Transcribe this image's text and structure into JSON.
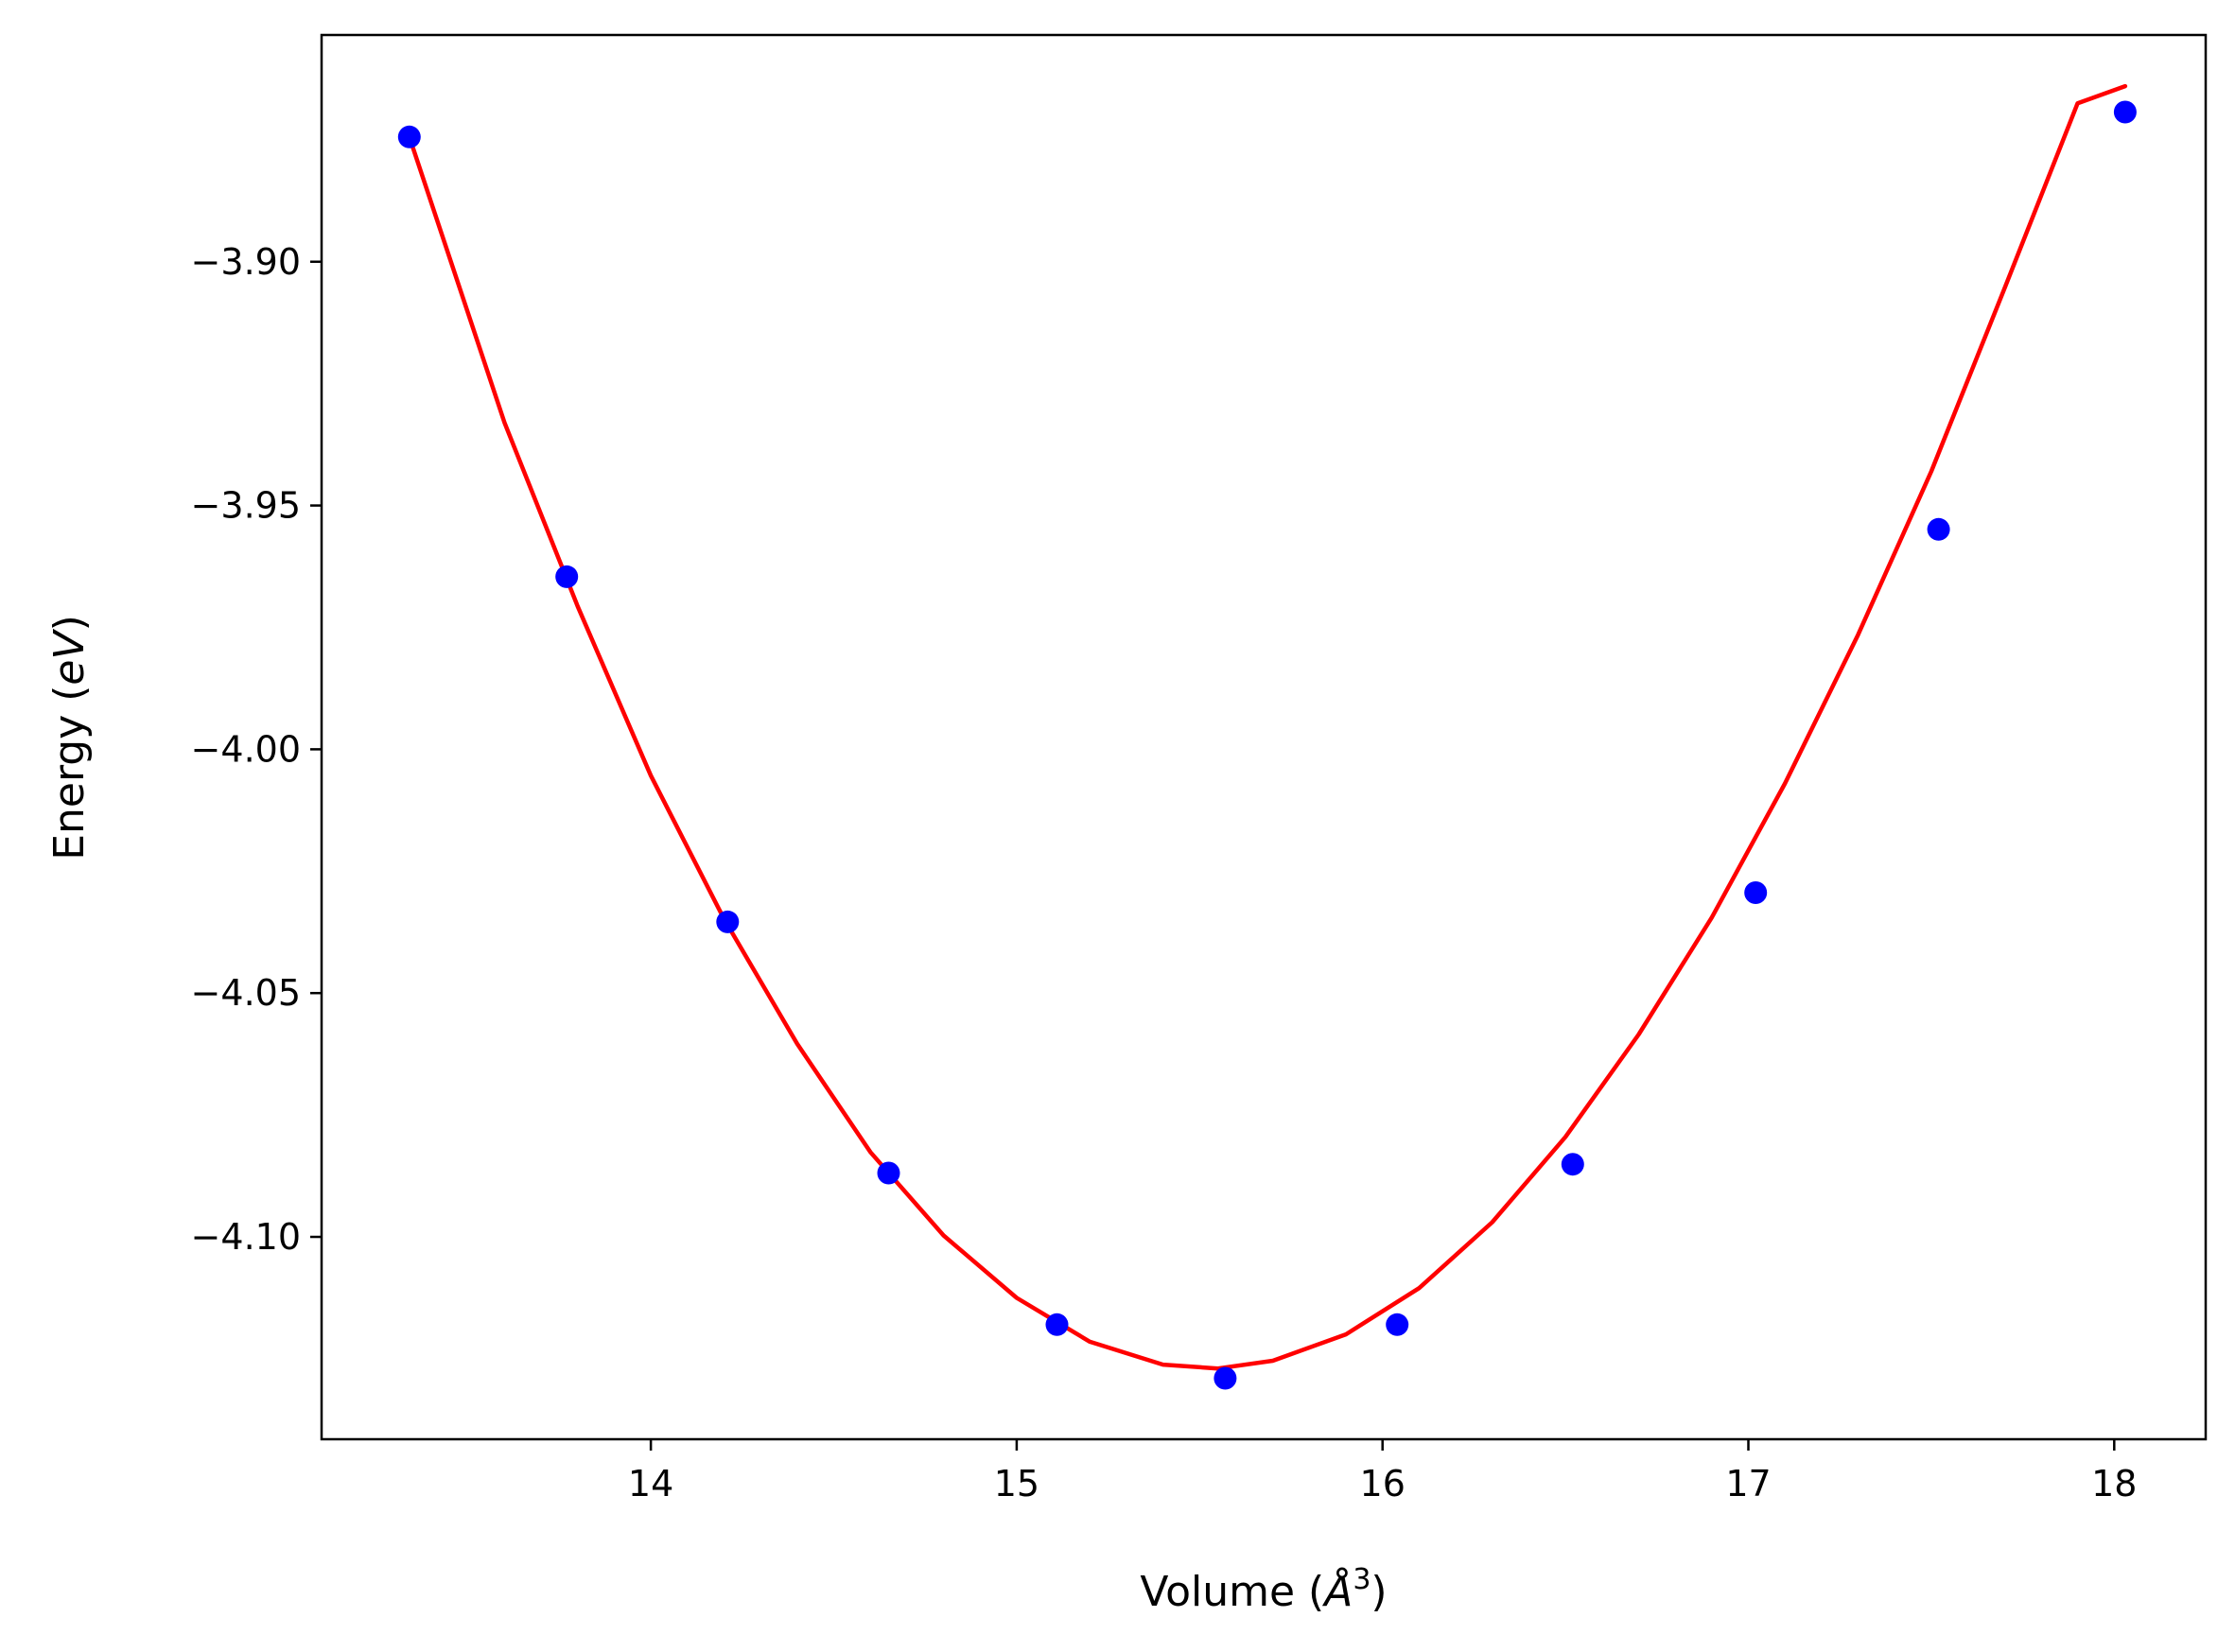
{
  "chart_data": {
    "type": "scatter",
    "title": "",
    "xlabel": {
      "prefix": "Volume (",
      "unit_symbol": "Å",
      "unit_exponent": "3",
      "suffix": ")"
    },
    "ylabel": {
      "prefix": "Energy (",
      "unit": "eV",
      "suffix": ")"
    },
    "xlim": [
      13.1,
      18.25
    ],
    "ylim": [
      -4.1415,
      -3.8535
    ],
    "xticks": [
      14,
      15,
      16,
      17,
      18
    ],
    "xtick_labels": [
      "14",
      "15",
      "16",
      "17",
      "18"
    ],
    "yticks": [
      -3.9,
      -3.95,
      -4.0,
      -4.05,
      -4.1
    ],
    "ytick_labels": [
      "−3.90",
      "−3.95",
      "−4.00",
      "−4.05",
      "−4.10"
    ],
    "grid": false,
    "legend": "none",
    "series": [
      {
        "type": "scatter",
        "color": "#0000ff",
        "x": [
          13.34,
          13.77,
          14.21,
          14.65,
          15.11,
          15.57,
          16.04,
          16.52,
          17.02,
          17.52,
          18.03
        ],
        "y": [
          -3.8744,
          -3.9646,
          -4.0354,
          -4.0869,
          -4.118,
          -4.129,
          -4.118,
          -4.0851,
          -4.0294,
          -3.9549,
          -3.8693
        ]
      },
      {
        "type": "line",
        "color": "#ff0000",
        "x": [
          13.34,
          13.6,
          13.8,
          14.0,
          14.2,
          14.4,
          14.6,
          14.8,
          15.0,
          15.2,
          15.4,
          15.55,
          15.7,
          15.9,
          16.1,
          16.3,
          16.5,
          16.7,
          16.9,
          17.1,
          17.3,
          17.5,
          17.7,
          17.9,
          18.03
        ],
        "y": [
          -3.8744,
          -3.933,
          -3.9707,
          -4.0054,
          -4.0348,
          -4.0604,
          -4.0826,
          -4.0997,
          -4.1125,
          -4.1215,
          -4.1262,
          -4.127,
          -4.1254,
          -4.12,
          -4.1105,
          -4.097,
          -4.0795,
          -4.0585,
          -4.0345,
          -4.007,
          -3.9765,
          -3.943,
          -3.9055,
          -3.8675,
          -3.864
        ]
      }
    ]
  }
}
